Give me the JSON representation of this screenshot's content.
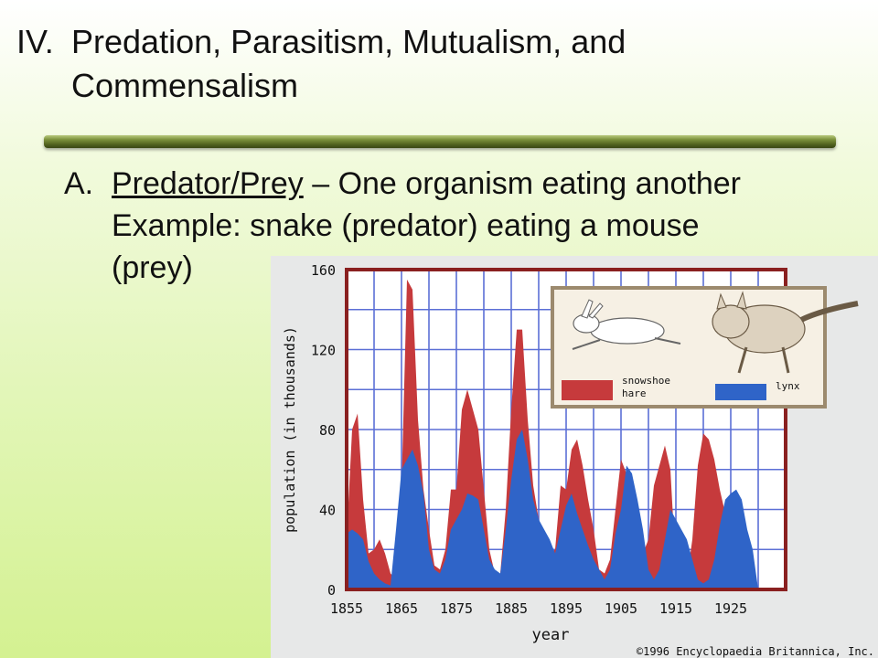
{
  "slide": {
    "title_number": "IV.",
    "title_text": "Predation, Parasitism, Mutualism, and Commensalism",
    "point_letter": "A.",
    "point_term": "Predator/Prey",
    "point_rest": " – One organism eating another",
    "point_line2": "Example:  snake (predator) eating a mouse",
    "point_line3": "(prey)"
  },
  "chart_data": {
    "type": "area",
    "xlabel": "year",
    "ylabel": "population (in thousands)",
    "xlim": [
      1855,
      1935
    ],
    "ylim": [
      0,
      160
    ],
    "x_ticks": [
      1855,
      1865,
      1875,
      1885,
      1895,
      1905,
      1915,
      1925
    ],
    "y_ticks": [
      0,
      40,
      80,
      120,
      160
    ],
    "grid": true,
    "legend_position": "top-right",
    "copyright": "©1996 Encyclopaedia Britannica, Inc.",
    "colors": {
      "hare": "#c63a3c",
      "lynx": "#2f64c8",
      "grid": "#5b6fd6",
      "frame": "#8a2020"
    },
    "series": [
      {
        "name": "snowshoe hare",
        "x": [
          1855,
          1856,
          1857,
          1858,
          1859,
          1860,
          1861,
          1862,
          1863,
          1864,
          1865,
          1866,
          1867,
          1868,
          1869,
          1870,
          1871,
          1872,
          1873,
          1874,
          1875,
          1876,
          1877,
          1878,
          1879,
          1880,
          1881,
          1882,
          1883,
          1884,
          1885,
          1886,
          1887,
          1888,
          1889,
          1890,
          1891,
          1892,
          1893,
          1894,
          1895,
          1896,
          1897,
          1898,
          1899,
          1900,
          1901,
          1902,
          1903,
          1904,
          1905,
          1906,
          1907,
          1908,
          1909,
          1910,
          1911,
          1912,
          1913,
          1914,
          1915,
          1916,
          1917,
          1918,
          1919,
          1920,
          1921,
          1922,
          1923,
          1924,
          1925,
          1926,
          1927,
          1928,
          1929,
          1930,
          1931,
          1932,
          1933,
          1934,
          1935
        ],
        "values": [
          25,
          80,
          88,
          45,
          18,
          20,
          25,
          18,
          8,
          5,
          50,
          155,
          150,
          85,
          50,
          30,
          12,
          10,
          20,
          50,
          50,
          90,
          100,
          90,
          80,
          50,
          20,
          8,
          8,
          40,
          90,
          130,
          130,
          85,
          52,
          35,
          25,
          18,
          20,
          52,
          50,
          70,
          75,
          62,
          45,
          30,
          10,
          8,
          15,
          40,
          65,
          58,
          52,
          18,
          18,
          25,
          52,
          62,
          72,
          60,
          10,
          4,
          5,
          25,
          62,
          78,
          75,
          65,
          50,
          38,
          22,
          0,
          0,
          0,
          0,
          0,
          0,
          0,
          0,
          0,
          0
        ]
      },
      {
        "name": "lynx",
        "x": [
          1855,
          1856,
          1857,
          1858,
          1859,
          1860,
          1861,
          1862,
          1863,
          1864,
          1865,
          1866,
          1867,
          1868,
          1869,
          1870,
          1871,
          1872,
          1873,
          1874,
          1875,
          1876,
          1877,
          1878,
          1879,
          1880,
          1881,
          1882,
          1883,
          1884,
          1885,
          1886,
          1887,
          1888,
          1889,
          1890,
          1891,
          1892,
          1893,
          1894,
          1895,
          1896,
          1897,
          1898,
          1899,
          1900,
          1901,
          1902,
          1903,
          1904,
          1905,
          1906,
          1907,
          1908,
          1909,
          1910,
          1911,
          1912,
          1913,
          1914,
          1915,
          1916,
          1917,
          1918,
          1919,
          1920,
          1921,
          1922,
          1923,
          1924,
          1925,
          1926,
          1927,
          1928,
          1929,
          1930,
          1931,
          1932,
          1933,
          1934,
          1935
        ],
        "values": [
          28,
          30,
          28,
          25,
          14,
          8,
          5,
          3,
          2,
          30,
          60,
          65,
          70,
          62,
          48,
          20,
          10,
          8,
          15,
          30,
          35,
          40,
          48,
          47,
          45,
          30,
          15,
          10,
          8,
          30,
          55,
          75,
          80,
          65,
          45,
          35,
          30,
          25,
          18,
          30,
          42,
          48,
          38,
          30,
          22,
          15,
          10,
          5,
          10,
          28,
          40,
          62,
          58,
          45,
          30,
          10,
          5,
          10,
          25,
          40,
          35,
          30,
          25,
          15,
          5,
          3,
          5,
          15,
          32,
          45,
          48,
          50,
          45,
          30,
          20,
          0,
          0,
          0,
          0,
          0,
          0
        ]
      }
    ]
  }
}
